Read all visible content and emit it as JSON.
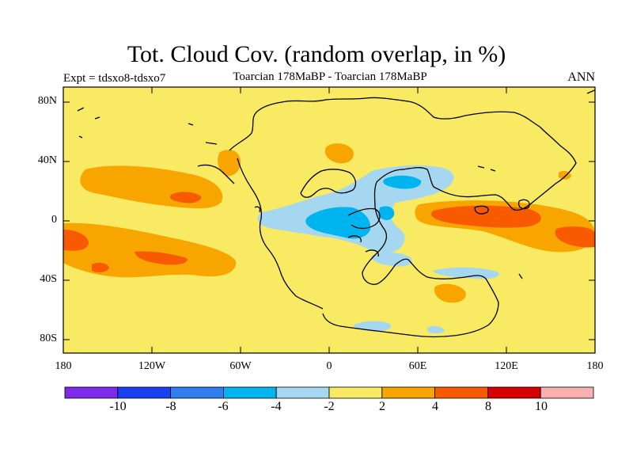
{
  "title": "Tot. Cloud Cov. (random overlap, in %)",
  "experiment_label": "Expt = tdsxo8-tdsxo7",
  "subtitle": "Toarcian 178MaBP - Toarcian 178MaBP",
  "season": "ANN",
  "lat_labels": [
    "80N",
    "40N",
    "0",
    "40S",
    "80S"
  ],
  "lon_labels": [
    "180",
    "120W",
    "60W",
    "0",
    "60E",
    "120E",
    "180"
  ],
  "colorbar": {
    "colors": [
      "#7f2ae8",
      "#1a3ff0",
      "#2f7ff0",
      "#00b4f0",
      "#a6d7f0",
      "#f8ea62",
      "#f8a500",
      "#f85a00",
      "#d60000",
      "#f8b0b0"
    ],
    "labels": [
      "-10",
      "-8",
      "-6",
      "-4",
      "-2",
      "2",
      "4",
      "8",
      "10"
    ]
  },
  "background_color": "#f8ea62"
}
